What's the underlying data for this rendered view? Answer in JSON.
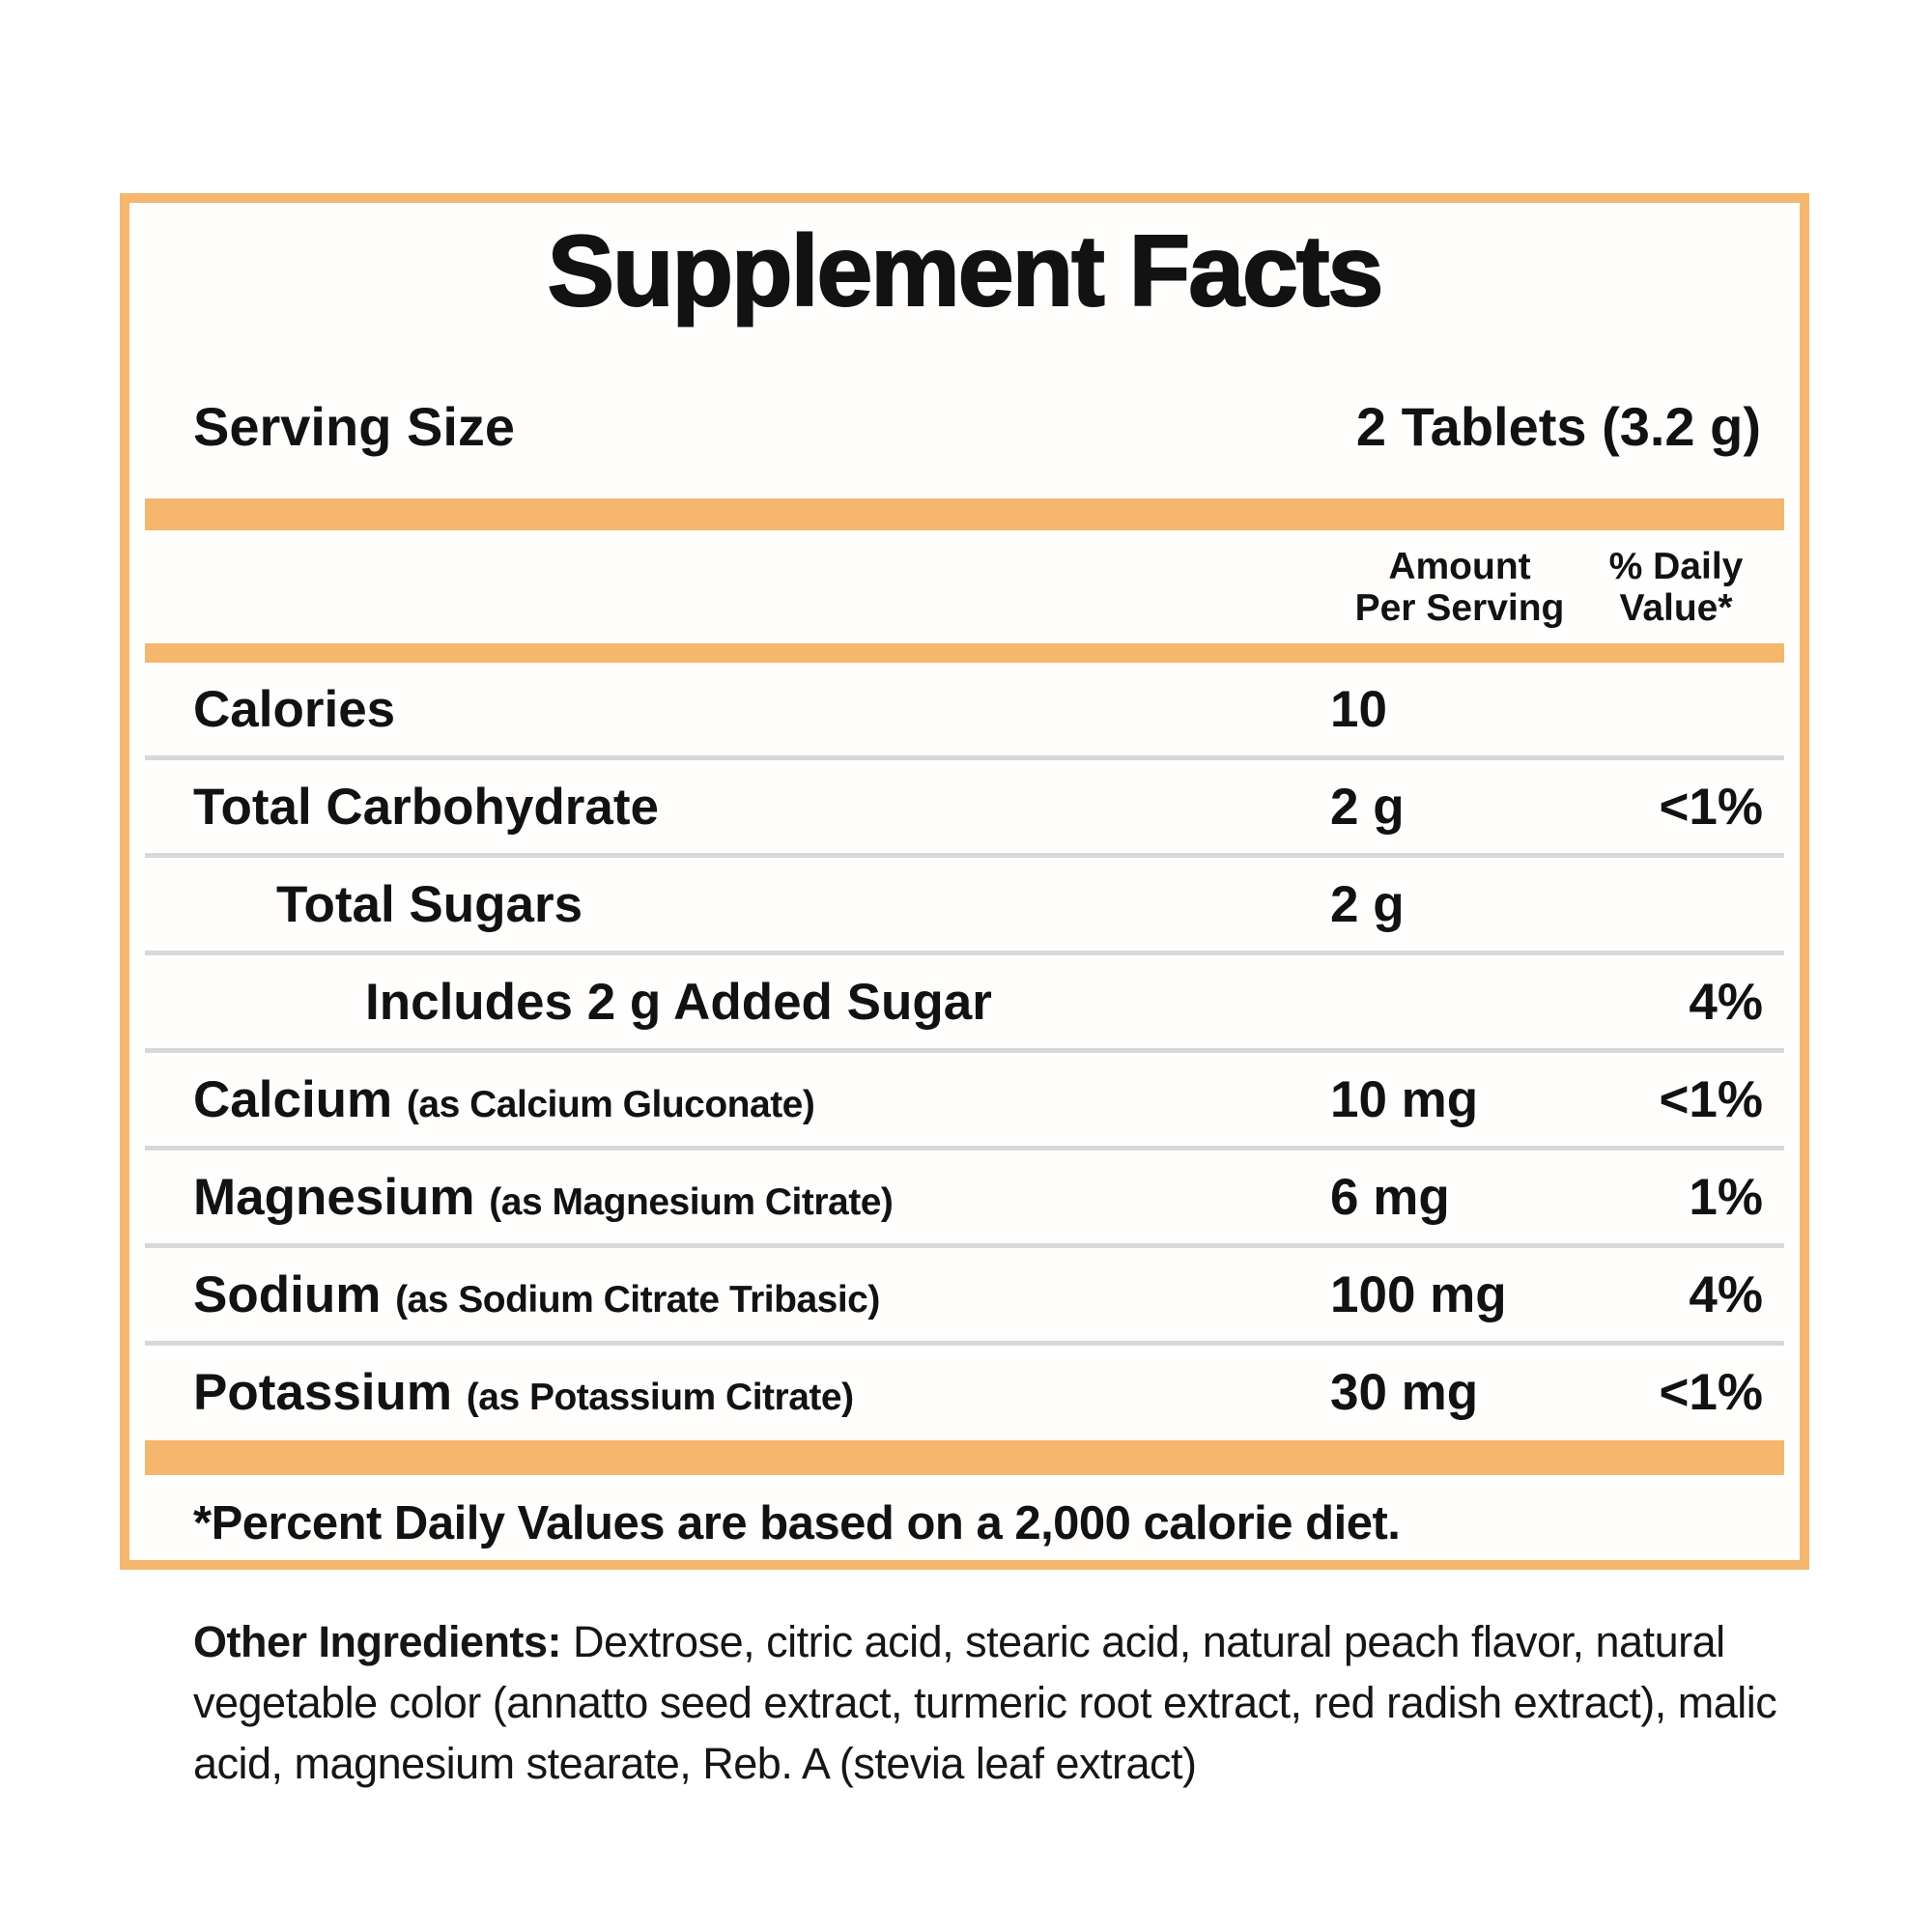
{
  "title": "Supplement Facts",
  "serving": {
    "label": "Serving Size",
    "value": "2 Tablets (3.2 g)"
  },
  "columns": {
    "amount_line1": "Amount",
    "amount_line2": "Per Serving",
    "dv_line1": "% Daily",
    "dv_line2": "Value*"
  },
  "rows": [
    {
      "name": "Calories",
      "detail": "",
      "indent": 0,
      "amount": "10",
      "dv": ""
    },
    {
      "name": "Total Carbohydrate",
      "detail": "",
      "indent": 0,
      "amount": "2 g",
      "dv": "<1%"
    },
    {
      "name": "Total Sugars",
      "detail": "",
      "indent": 1,
      "amount": "2 g",
      "dv": ""
    },
    {
      "name": "Includes 2 g Added Sugar",
      "detail": "",
      "indent": 2,
      "amount": "",
      "dv": "4%"
    },
    {
      "name": "Calcium",
      "detail": "(as Calcium Gluconate)",
      "indent": 0,
      "amount": "10 mg",
      "dv": "<1%"
    },
    {
      "name": "Magnesium",
      "detail": "(as Magnesium Citrate)",
      "indent": 0,
      "amount": "6 mg",
      "dv": "1%"
    },
    {
      "name": "Sodium",
      "detail": "(as Sodium Citrate Tribasic)",
      "indent": 0,
      "amount": "100 mg",
      "dv": "4%"
    },
    {
      "name": "Potassium",
      "detail": "(as Potassium Citrate)",
      "indent": 0,
      "amount": "30 mg",
      "dv": "<1%"
    }
  ],
  "footnote": "*Percent Daily Values are based on a 2,000 calorie diet.",
  "other_ingredients": {
    "label": "Other Ingredients:",
    "text": " Dextrose, citric acid, stearic acid, natural peach flavor, natural vegetable color (annatto seed extract, turmeric root extract, red radish extract), malic acid, magnesium stearate, Reb. A (stevia leaf extract)"
  },
  "colors": {
    "accent_orange": "#f5b66e",
    "divider_gray": "#d8d8d8",
    "text_black": "#121212"
  }
}
